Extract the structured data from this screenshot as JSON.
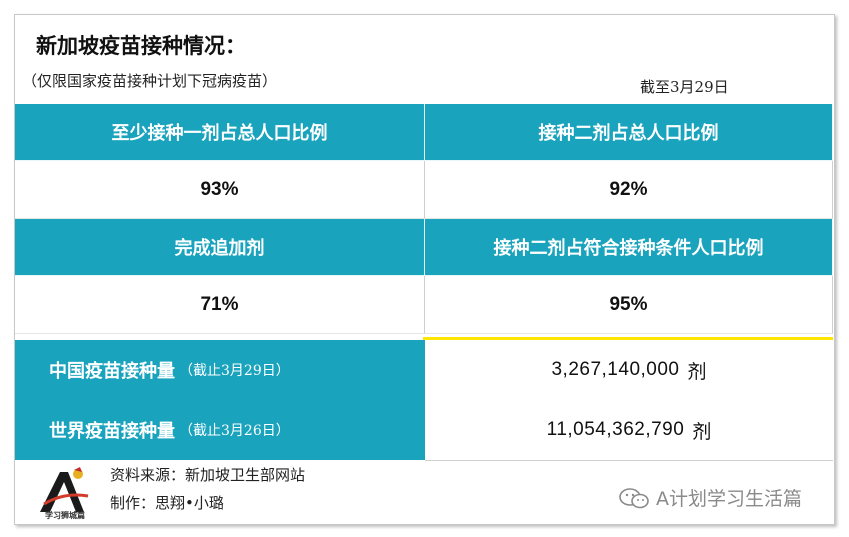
{
  "header": {
    "title": "新加坡疫苗接种情况：",
    "subtitle": "（仅限国家疫苗接种计划下冠病疫苗）",
    "as_of": "截至3月29日"
  },
  "stats": [
    {
      "label": "至少接种一剂占总人口比例",
      "value": "93%"
    },
    {
      "label": "接种二剂占总人口比例",
      "value": "92%"
    },
    {
      "label": "完成追加剂",
      "value": "71%"
    },
    {
      "label": "接种二剂占符合接种条件人口比例",
      "value": "95%"
    }
  ],
  "volumes": [
    {
      "label": "中国疫苗接种量",
      "note": "（截止3月29日）",
      "value": "3,267,140,000",
      "unit": "剂"
    },
    {
      "label": "世界疫苗接种量",
      "note": "（截止3月26日）",
      "value": "11,054,362,790",
      "unit": "剂"
    }
  ],
  "footer": {
    "source": "资料来源：新加坡卫生部网站",
    "author": "制作：思翔•小璐",
    "logo_text": "学习狮城篇",
    "watermark": "A计划学习生活篇"
  },
  "colors": {
    "header_bg": "#1aa3bd",
    "accent_line": "#ffe600"
  }
}
